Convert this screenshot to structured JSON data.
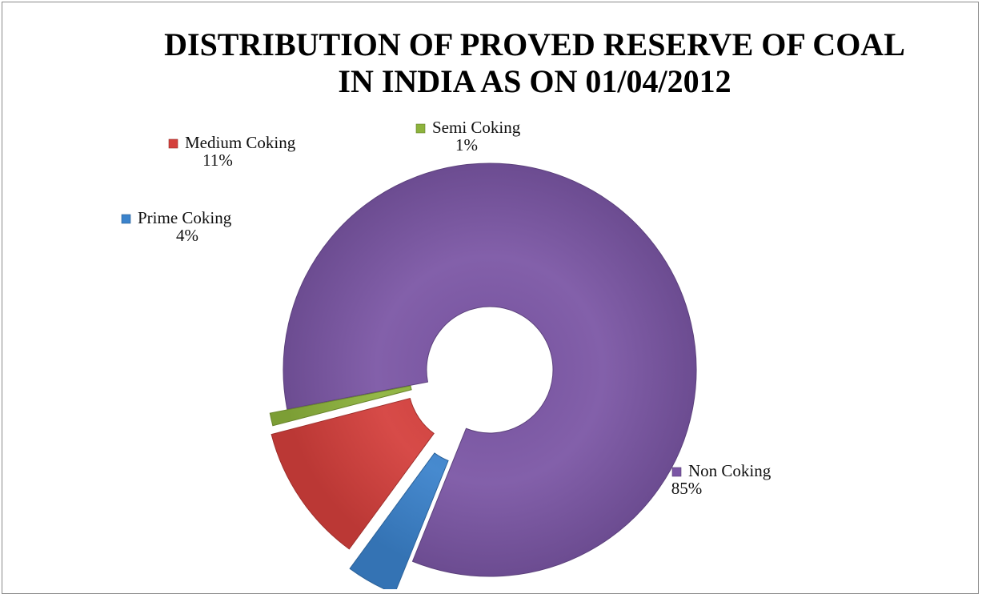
{
  "chart_data": {
    "type": "pie",
    "title": "DISTRIBUTION OF PROVED RESERVE OF COAL IN INDIA AS ON 01/04/2012",
    "title_lines": [
      "DISTRIBUTION OF PROVED RESERVE OF COAL",
      "IN INDIA AS ON 01/04/2012"
    ],
    "style": "exploded doughnut",
    "categories": [
      "Non Coking",
      "Prime Coking",
      "Medium Coking",
      "Semi Coking"
    ],
    "values": [
      85,
      4,
      11,
      1
    ],
    "labels": [
      "85%",
      "4%",
      "11%",
      "1%"
    ],
    "colors": [
      "#7b56a5",
      "#3b83cc",
      "#d4403c",
      "#8db33c"
    ],
    "legend": "none"
  }
}
